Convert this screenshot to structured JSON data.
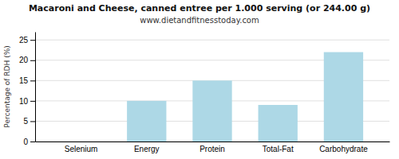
{
  "chart_data": {
    "type": "bar",
    "title": "Macaroni and Cheese, canned entree per 1.000 serving (or 244.00 g)",
    "subtitle": "www.dietandfitnesstoday.com",
    "categories": [
      "Selenium",
      "Energy",
      "Protein",
      "Total-Fat",
      "Carbohydrate"
    ],
    "values": [
      0,
      10,
      15,
      9,
      22
    ],
    "color": "#add8e6",
    "ylabel": "Percentage of RDH (%)",
    "ylim": [
      0,
      27
    ],
    "yticks": [
      0,
      5,
      10,
      15,
      20,
      25
    ],
    "grid": true
  }
}
